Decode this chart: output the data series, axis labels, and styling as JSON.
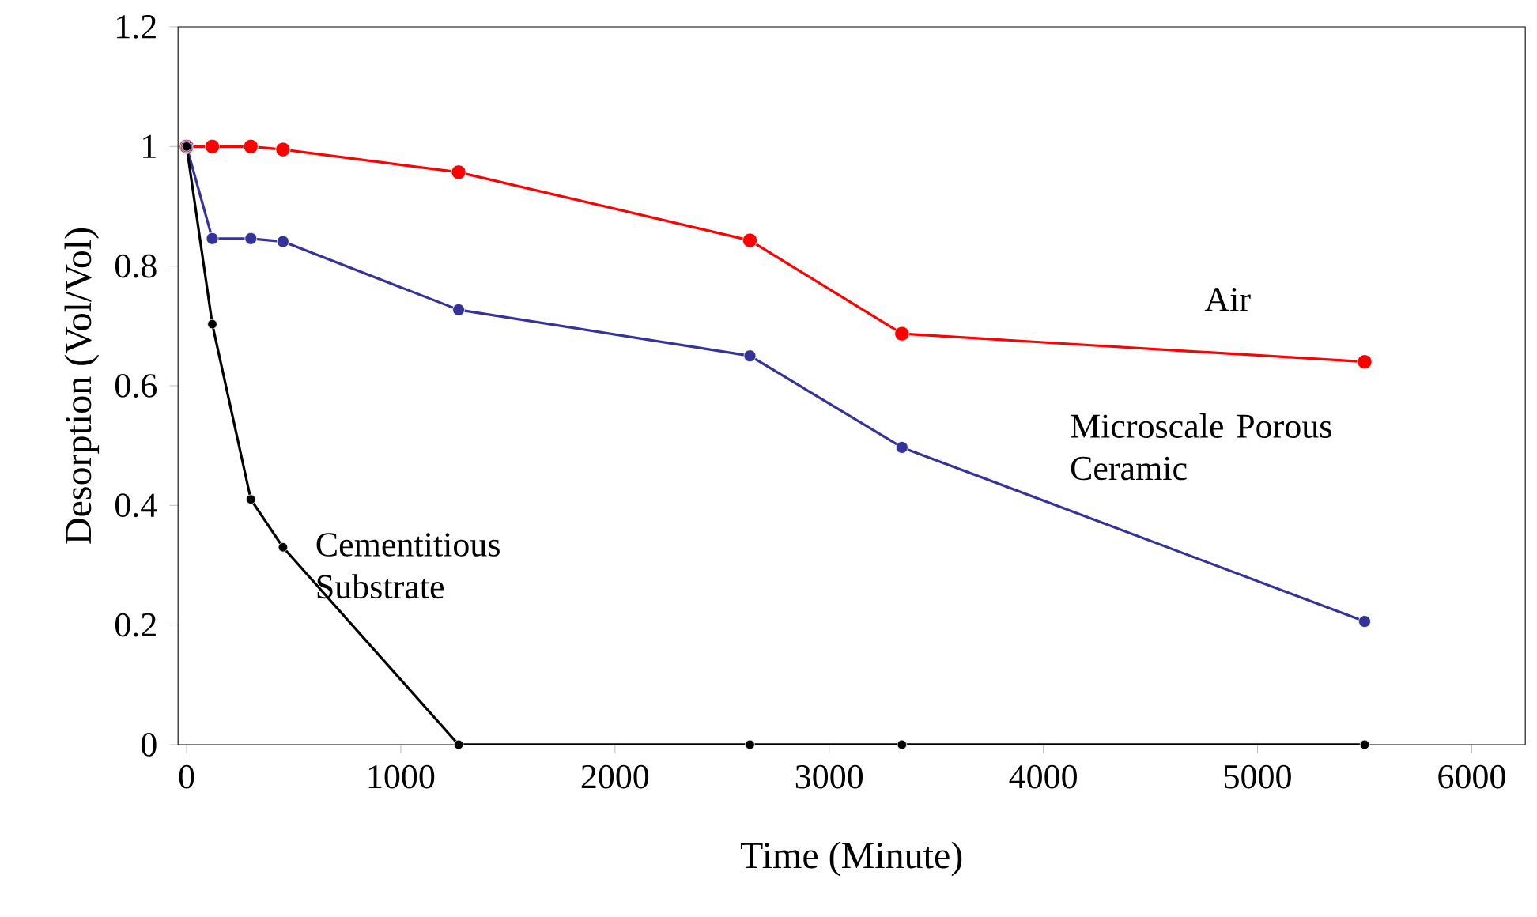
{
  "chart_data": {
    "type": "line",
    "xlabel": "Time (Minute)",
    "ylabel": "Desorption (Vol/Vol)",
    "x": [
      0,
      120,
      300,
      450,
      1270,
      2630,
      3340,
      5500
    ],
    "series": [
      {
        "name": "Air",
        "color": "#ff0000",
        "values": [
          1,
          1,
          1,
          0.995,
          0.957,
          0.843,
          0.687,
          0.64
        ]
      },
      {
        "name": "Microscale Porous Ceramic",
        "color": "#333399",
        "values": [
          1,
          0.846,
          0.846,
          0.841,
          0.727,
          0.65,
          0.497,
          0.206
        ]
      },
      {
        "name": "Cementitious Substrate",
        "color": "#000000",
        "values": [
          1,
          0.703,
          0.41,
          0.33,
          0,
          0,
          0,
          0
        ]
      }
    ],
    "xlim": [
      -40,
      6250
    ],
    "ylim": [
      0,
      1.2
    ],
    "xticks": [
      0,
      1000,
      2000,
      3000,
      4000,
      5000,
      6000
    ],
    "yticks": [
      0,
      0.2,
      0.4,
      0.6,
      0.8,
      1,
      1.2
    ],
    "grid": false,
    "legend": false,
    "marker": "circle",
    "line_style": "solid"
  }
}
